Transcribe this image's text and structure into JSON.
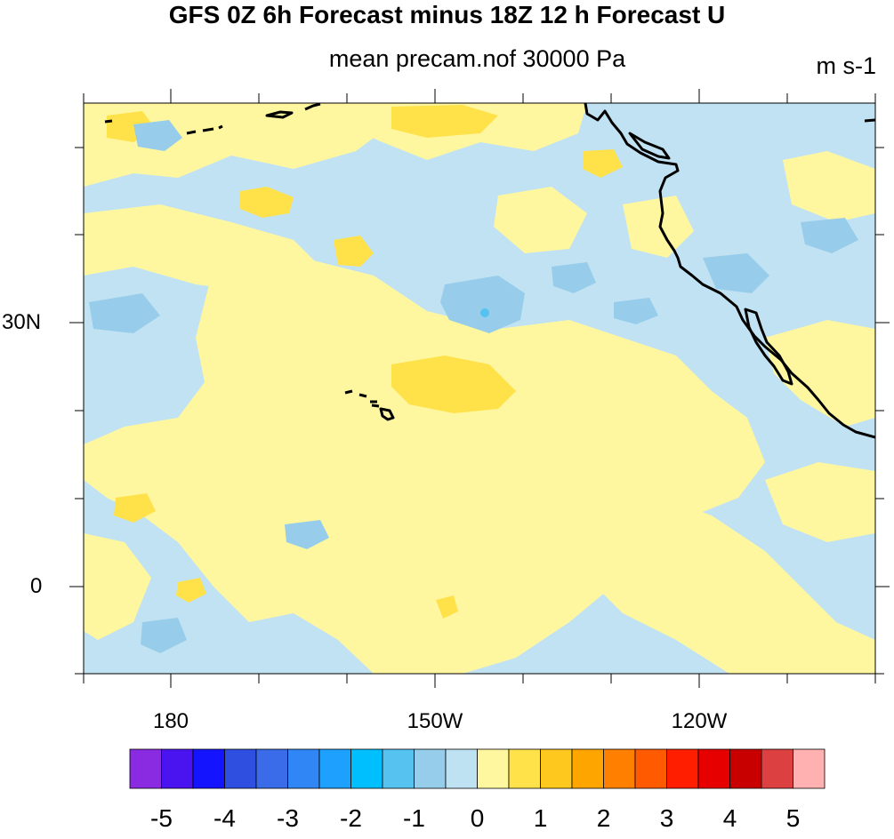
{
  "title": "GFS 0Z 6h Forecast minus 18Z 12 h Forecast U",
  "subtitle": "mean precam.nof 30000 Pa",
  "units": "m s-1",
  "lat_labels": [
    "30N",
    "0"
  ],
  "lon_labels": [
    "180",
    "150W",
    "120W"
  ],
  "colorbar": {
    "colors": [
      "#8a2be2",
      "#4a14f0",
      "#1414ff",
      "#2e4fe0",
      "#3a6be8",
      "#2f86f4",
      "#1ea0ff",
      "#00bfff",
      "#55c2f0",
      "#95cdea",
      "#bfe2f3",
      "#fff7a0",
      "#ffe14a",
      "#ffc81e",
      "#ffa500",
      "#ff8000",
      "#ff5a00",
      "#ff1e00",
      "#e60000",
      "#c80000",
      "#dc4040",
      "#ffb0b0"
    ],
    "labels": [
      "-5",
      "-4",
      "-3",
      "-2",
      "-1",
      "0",
      "1",
      "2",
      "3",
      "4",
      "5"
    ]
  },
  "map": {
    "background_color": "#c1e2f3",
    "positive_color": "#fff7a0",
    "stronger_color": "#ffe14a",
    "negative_color": "#97cdea"
  }
}
